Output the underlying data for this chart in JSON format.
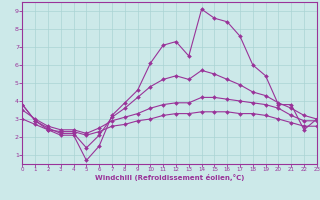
{
  "xlabel": "Windchill (Refroidissement éolien,°C)",
  "xlim": [
    0,
    23
  ],
  "ylim": [
    0.5,
    9.5
  ],
  "xticks": [
    0,
    1,
    2,
    3,
    4,
    5,
    6,
    7,
    8,
    9,
    10,
    11,
    12,
    13,
    14,
    15,
    16,
    17,
    18,
    19,
    20,
    21,
    22,
    23
  ],
  "yticks": [
    1,
    2,
    3,
    4,
    5,
    6,
    7,
    8,
    9
  ],
  "bg_color": "#cce9e9",
  "line_color": "#993399",
  "line1_y": [
    3.8,
    2.9,
    2.4,
    2.1,
    2.1,
    0.7,
    1.5,
    3.2,
    3.9,
    4.6,
    6.1,
    7.1,
    7.3,
    6.5,
    9.1,
    8.6,
    8.4,
    7.6,
    6.0,
    5.4,
    3.8,
    3.8,
    2.4,
    3.0
  ],
  "line2_y": [
    3.8,
    2.9,
    2.5,
    2.2,
    2.2,
    1.4,
    2.1,
    3.1,
    3.6,
    4.2,
    4.8,
    5.2,
    5.4,
    5.2,
    5.7,
    5.5,
    5.2,
    4.9,
    4.5,
    4.3,
    3.9,
    3.6,
    3.2,
    3.0
  ],
  "line3_y": [
    3.5,
    3.0,
    2.6,
    2.4,
    2.4,
    2.2,
    2.5,
    2.9,
    3.1,
    3.3,
    3.6,
    3.8,
    3.9,
    3.9,
    4.2,
    4.2,
    4.1,
    4.0,
    3.9,
    3.8,
    3.6,
    3.2,
    2.9,
    2.9
  ],
  "line4_y": [
    3.0,
    2.7,
    2.4,
    2.3,
    2.3,
    2.1,
    2.3,
    2.6,
    2.7,
    2.9,
    3.0,
    3.2,
    3.3,
    3.3,
    3.4,
    3.4,
    3.4,
    3.3,
    3.3,
    3.2,
    3.0,
    2.8,
    2.6,
    2.6
  ]
}
